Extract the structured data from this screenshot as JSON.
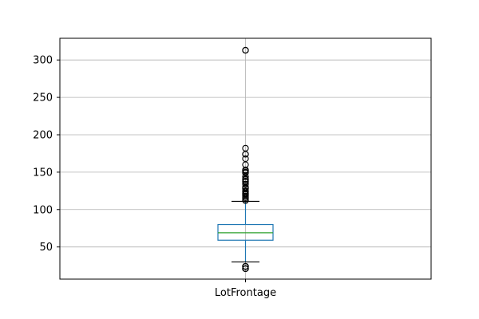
{
  "chart_data": {
    "type": "box",
    "categories": [
      "LotFrontage"
    ],
    "series": [
      {
        "whisker_low": 30,
        "q1": 59,
        "median": 69,
        "q3": 80,
        "whisker_high": 111,
        "outliers": [
          21,
          21,
          21,
          21,
          24,
          24,
          24,
          24,
          112,
          114,
          116,
          118,
          120,
          121,
          122,
          124,
          125,
          128,
          129,
          130,
          134,
          137,
          138,
          140,
          141,
          144,
          149,
          150,
          152,
          152,
          153,
          160,
          168,
          174,
          174,
          182,
          313,
          313
        ]
      }
    ],
    "yticks": [
      50,
      100,
      150,
      200,
      250,
      300
    ],
    "ytick_labels": [
      "50",
      "100",
      "150",
      "200",
      "250",
      "300"
    ],
    "ylim": [
      7,
      329
    ],
    "grid": true,
    "colors": {
      "box": "#1f77b4",
      "whisker": "#1f77b4",
      "cap": "#000000",
      "median": "#2ca02c",
      "outlier": "#000000",
      "grid": "#b0b0b0",
      "axes": "#000000"
    }
  }
}
